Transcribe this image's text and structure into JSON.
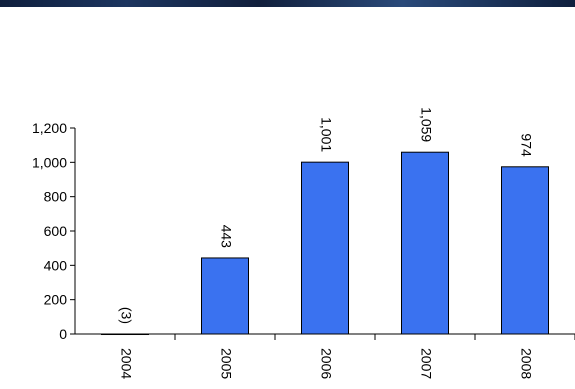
{
  "chart_data": {
    "type": "bar",
    "categories": [
      "2004",
      "2005",
      "2006",
      "2007",
      "2008"
    ],
    "values": [
      -3,
      443,
      1001,
      1059,
      974
    ],
    "data_labels": [
      "(3)",
      "443",
      "1,001",
      "1,059",
      "974"
    ],
    "y_ticks": [
      "0",
      "200",
      "400",
      "600",
      "800",
      "1,000",
      "1,200"
    ],
    "y_tick_values": [
      0,
      200,
      400,
      600,
      800,
      1000,
      1200
    ],
    "ylim": [
      0,
      1200
    ],
    "bar_color": "#3a72f0",
    "grid": false,
    "legend": false,
    "title": "",
    "xlabel": "",
    "ylabel": ""
  },
  "colors": {
    "top_band": "#16284a"
  }
}
